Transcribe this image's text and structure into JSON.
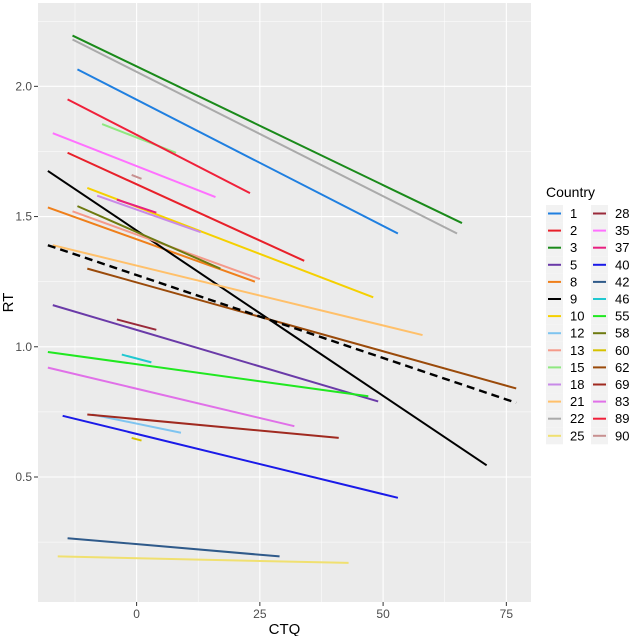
{
  "chart_data": {
    "type": "line",
    "title": "",
    "xlabel": "CTQ",
    "ylabel": "RT",
    "xlim": [
      -20,
      80
    ],
    "ylim": [
      0.02,
      2.32
    ],
    "x_ticks": [
      0,
      25,
      50,
      75
    ],
    "y_ticks": [
      0.5,
      1.0,
      1.5,
      2.0
    ],
    "x_tick_labels": [
      "0",
      "25",
      "50",
      "75"
    ],
    "y_tick_labels": [
      "0.5",
      "1.0",
      "1.5",
      "2.0"
    ],
    "grid": true,
    "legend": {
      "title": "Country",
      "placement": "right",
      "columns": 2
    },
    "series": [
      {
        "name": "1",
        "color": "#1F7FE0",
        "x": [
          -12,
          53
        ],
        "y": [
          2.065,
          1.435
        ]
      },
      {
        "name": "2",
        "color": "#E8202A",
        "x": [
          -14,
          34
        ],
        "y": [
          1.745,
          1.33
        ]
      },
      {
        "name": "3",
        "color": "#1A8A1A",
        "x": [
          -13,
          66
        ],
        "y": [
          2.195,
          1.475
        ]
      },
      {
        "name": "5",
        "color": "#6A3AA8",
        "x": [
          -17,
          49
        ],
        "y": [
          1.16,
          0.79
        ]
      },
      {
        "name": "8",
        "color": "#EF7F1A",
        "x": [
          -18,
          24
        ],
        "y": [
          1.535,
          1.25
        ]
      },
      {
        "name": "9",
        "color": "#000000",
        "x": [
          -18,
          71
        ],
        "y": [
          1.675,
          0.545
        ]
      },
      {
        "name": "10",
        "color": "#F5D000",
        "x": [
          -10,
          48
        ],
        "y": [
          1.61,
          1.19
        ]
      },
      {
        "name": "12",
        "color": "#7EC4F0",
        "x": [
          -9,
          9
        ],
        "y": [
          0.74,
          0.67
        ]
      },
      {
        "name": "13",
        "color": "#F59A8A",
        "x": [
          -13,
          25
        ],
        "y": [
          1.52,
          1.26
        ]
      },
      {
        "name": "15",
        "color": "#8FE880",
        "x": [
          -7,
          8
        ],
        "y": [
          1.855,
          1.745
        ]
      },
      {
        "name": "18",
        "color": "#C88AE8",
        "x": [
          -8,
          13
        ],
        "y": [
          1.58,
          1.44
        ]
      },
      {
        "name": "21",
        "color": "#FFC06A",
        "x": [
          -17,
          58
        ],
        "y": [
          1.39,
          1.045
        ]
      },
      {
        "name": "22",
        "color": "#AAAAAA",
        "x": [
          -13,
          65
        ],
        "y": [
          2.18,
          1.435
        ]
      },
      {
        "name": "25",
        "color": "#F0E070",
        "x": [
          -16,
          43
        ],
        "y": [
          0.195,
          0.17
        ]
      },
      {
        "name": "28",
        "color": "#9A2A3A",
        "x": [
          -4,
          4
        ],
        "y": [
          1.105,
          1.065
        ]
      },
      {
        "name": "35",
        "color": "#FF70FF",
        "x": [
          -17,
          16
        ],
        "y": [
          1.82,
          1.575
        ]
      },
      {
        "name": "37",
        "color": "#E81F80",
        "x": [
          -4,
          4
        ],
        "y": [
          1.565,
          1.515
        ]
      },
      {
        "name": "40",
        "color": "#1A1AE8",
        "x": [
          -15,
          53
        ],
        "y": [
          0.735,
          0.42
        ]
      },
      {
        "name": "42",
        "color": "#2F5A8A",
        "x": [
          -14,
          29
        ],
        "y": [
          0.265,
          0.195
        ]
      },
      {
        "name": "46",
        "color": "#20C8D0",
        "x": [
          -3,
          3
        ],
        "y": [
          0.97,
          0.94
        ]
      },
      {
        "name": "55",
        "color": "#20E820",
        "x": [
          -18,
          47
        ],
        "y": [
          0.98,
          0.81
        ]
      },
      {
        "name": "58",
        "color": "#6E7A10",
        "x": [
          -12,
          17
        ],
        "y": [
          1.54,
          1.3
        ]
      },
      {
        "name": "60",
        "color": "#D6C200",
        "x": [
          -1,
          1
        ],
        "y": [
          0.65,
          0.64
        ]
      },
      {
        "name": "62",
        "color": "#9A4A0A",
        "x": [
          -10,
          77
        ],
        "y": [
          1.3,
          0.84
        ]
      },
      {
        "name": "69",
        "color": "#A02A20",
        "x": [
          -10,
          41
        ],
        "y": [
          0.74,
          0.65
        ]
      },
      {
        "name": "83",
        "color": "#E070E8",
        "x": [
          -18,
          32
        ],
        "y": [
          0.92,
          0.695
        ]
      },
      {
        "name": "89",
        "color": "#F0203A",
        "x": [
          -14,
          23
        ],
        "y": [
          1.95,
          1.59
        ]
      },
      {
        "name": "90",
        "color": "#C89090",
        "x": [
          -1,
          1
        ],
        "y": [
          1.66,
          1.645
        ]
      }
    ],
    "overall_line": {
      "style": "dashed",
      "color": "#000000",
      "x": [
        -18,
        77
      ],
      "y": [
        1.39,
        0.785
      ]
    }
  }
}
